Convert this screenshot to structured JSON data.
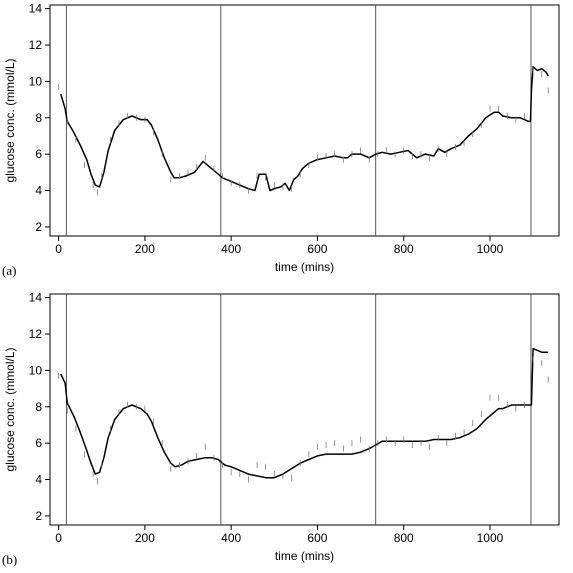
{
  "chart_data": [
    {
      "type": "line",
      "panel_label": "(a)",
      "title": "",
      "xlabel": "time (mins)",
      "ylabel": "glucose conc. (mmol/L)",
      "xlim": [
        -20,
        1160
      ],
      "ylim": [
        1.5,
        14.2
      ],
      "xticks": [
        0,
        200,
        400,
        600,
        800,
        1000
      ],
      "yticks": [
        2,
        4,
        6,
        8,
        10,
        12,
        14
      ],
      "vlines": [
        18,
        376,
        735,
        1095
      ],
      "grid": false,
      "legend": "none",
      "series": [
        {
          "style": "solid-line",
          "x": [
            5,
            15,
            20,
            35,
            50,
            65,
            75,
            85,
            95,
            105,
            115,
            130,
            150,
            170,
            190,
            205,
            215,
            230,
            245,
            260,
            268,
            280,
            295,
            315,
            335,
            350,
            365,
            380,
            400,
            420,
            440,
            455,
            465,
            480,
            490,
            500,
            515,
            525,
            535,
            545,
            555,
            565,
            580,
            600,
            620,
            640,
            660,
            670,
            680,
            700,
            720,
            735,
            750,
            770,
            790,
            810,
            820,
            830,
            850,
            870,
            880,
            895,
            910,
            930,
            950,
            970,
            990,
            1010,
            1020,
            1030,
            1050,
            1070,
            1090,
            1094,
            1096,
            1100,
            1110,
            1120,
            1130,
            1135
          ],
          "y": [
            9.3,
            8.5,
            7.8,
            7.2,
            6.5,
            5.7,
            4.9,
            4.3,
            4.2,
            5.0,
            6.2,
            7.3,
            7.9,
            8.1,
            7.9,
            7.9,
            7.6,
            6.8,
            5.8,
            5.0,
            4.7,
            4.7,
            4.8,
            5.0,
            5.6,
            5.3,
            5.0,
            4.7,
            4.5,
            4.3,
            4.1,
            4.0,
            4.9,
            4.9,
            4.0,
            4.1,
            4.2,
            4.4,
            4.0,
            4.6,
            4.8,
            5.2,
            5.5,
            5.7,
            5.8,
            5.9,
            5.8,
            5.8,
            6.0,
            6.0,
            5.8,
            6.0,
            6.1,
            6.0,
            6.1,
            6.2,
            6.0,
            5.8,
            6.0,
            5.9,
            6.3,
            6.1,
            6.3,
            6.5,
            7.0,
            7.4,
            8.0,
            8.3,
            8.3,
            8.1,
            8.0,
            8.0,
            7.8,
            7.8,
            9.5,
            10.8,
            10.6,
            10.7,
            10.5,
            10.3
          ]
        },
        {
          "style": "observation-marks",
          "x": [
            0,
            20,
            40,
            60,
            80,
            90,
            100,
            120,
            140,
            160,
            180,
            200,
            220,
            240,
            260,
            280,
            300,
            320,
            340,
            360,
            380,
            400,
            420,
            440,
            460,
            480,
            500,
            520,
            540,
            560,
            580,
            600,
            620,
            640,
            660,
            680,
            700,
            720,
            740,
            760,
            780,
            800,
            820,
            840,
            860,
            880,
            900,
            920,
            940,
            960,
            980,
            1000,
            1020,
            1040,
            1060,
            1080,
            1100,
            1120,
            1135
          ],
          "y": [
            9.7,
            7.8,
            6.8,
            5.4,
            4.3,
            3.9,
            4.8,
            6.8,
            7.7,
            8.1,
            8.0,
            7.9,
            7.2,
            6.0,
            4.6,
            4.8,
            5.0,
            5.3,
            5.8,
            5.2,
            4.8,
            4.4,
            4.3,
            4.0,
            4.8,
            4.7,
            4.3,
            4.2,
            4.1,
            4.9,
            5.4,
            5.8,
            5.9,
            6.0,
            5.7,
            6.0,
            6.2,
            5.7,
            6.0,
            6.2,
            6.0,
            6.2,
            5.9,
            6.0,
            5.8,
            6.3,
            6.0,
            6.4,
            6.6,
            7.1,
            7.6,
            8.5,
            8.5,
            8.1,
            7.9,
            8.1,
            10.6,
            10.4,
            9.5
          ]
        }
      ]
    },
    {
      "type": "line",
      "panel_label": "(b)",
      "title": "",
      "xlabel": "time (mins)",
      "ylabel": "glucose conc. (mmol/L)",
      "xlim": [
        -20,
        1160
      ],
      "ylim": [
        1.5,
        14.2
      ],
      "xticks": [
        0,
        200,
        400,
        600,
        800,
        1000
      ],
      "yticks": [
        2,
        4,
        6,
        8,
        10,
        12,
        14
      ],
      "vlines": [
        18,
        376,
        735,
        1095
      ],
      "grid": false,
      "legend": "none",
      "series": [
        {
          "style": "solid-line",
          "x": [
            5,
            15,
            20,
            35,
            50,
            65,
            75,
            85,
            95,
            105,
            115,
            130,
            150,
            170,
            190,
            205,
            215,
            230,
            245,
            260,
            270,
            285,
            300,
            320,
            340,
            355,
            370,
            385,
            400,
            420,
            440,
            460,
            480,
            500,
            520,
            540,
            560,
            580,
            600,
            620,
            640,
            660,
            680,
            700,
            720,
            735,
            750,
            770,
            790,
            810,
            830,
            850,
            870,
            890,
            910,
            930,
            950,
            970,
            990,
            1010,
            1020,
            1030,
            1050,
            1070,
            1090,
            1094,
            1096,
            1100,
            1110,
            1120,
            1130,
            1135
          ],
          "y": [
            9.8,
            9.3,
            8.2,
            7.5,
            6.6,
            5.6,
            4.9,
            4.3,
            4.4,
            5.2,
            6.3,
            7.3,
            7.9,
            8.1,
            7.9,
            7.6,
            7.2,
            6.3,
            5.5,
            4.9,
            4.7,
            4.8,
            5.0,
            5.1,
            5.2,
            5.2,
            5.1,
            4.8,
            4.7,
            4.5,
            4.3,
            4.2,
            4.1,
            4.1,
            4.3,
            4.6,
            4.9,
            5.1,
            5.3,
            5.4,
            5.4,
            5.4,
            5.4,
            5.5,
            5.7,
            5.9,
            6.1,
            6.1,
            6.1,
            6.1,
            6.1,
            6.1,
            6.2,
            6.2,
            6.2,
            6.3,
            6.5,
            6.8,
            7.3,
            7.7,
            7.9,
            7.9,
            8.1,
            8.1,
            8.1,
            8.1,
            8.1,
            11.2,
            11.1,
            11.0,
            11.0,
            11.0
          ]
        },
        {
          "style": "observation-marks",
          "x": [
            0,
            20,
            40,
            60,
            80,
            90,
            100,
            120,
            140,
            160,
            180,
            200,
            220,
            240,
            260,
            280,
            300,
            320,
            340,
            360,
            380,
            400,
            420,
            440,
            460,
            480,
            500,
            520,
            540,
            560,
            580,
            600,
            620,
            640,
            660,
            680,
            700,
            720,
            740,
            760,
            780,
            800,
            820,
            840,
            860,
            880,
            900,
            920,
            940,
            960,
            980,
            1000,
            1020,
            1040,
            1060,
            1080,
            1100,
            1120,
            1135
          ],
          "y": [
            9.7,
            7.8,
            6.8,
            5.4,
            4.3,
            3.9,
            4.8,
            6.8,
            7.7,
            8.1,
            8.0,
            7.9,
            7.2,
            6.0,
            4.6,
            4.8,
            5.0,
            5.3,
            5.8,
            5.2,
            4.8,
            4.4,
            4.3,
            4.0,
            4.8,
            4.7,
            4.3,
            4.2,
            4.1,
            4.9,
            5.4,
            5.8,
            5.9,
            6.0,
            5.7,
            6.0,
            6.2,
            5.7,
            6.0,
            6.2,
            6.0,
            6.2,
            5.9,
            6.0,
            5.8,
            6.3,
            6.0,
            6.4,
            6.6,
            7.1,
            7.6,
            8.5,
            8.5,
            8.1,
            7.9,
            8.1,
            10.6,
            10.4,
            9.5
          ]
        }
      ]
    }
  ]
}
